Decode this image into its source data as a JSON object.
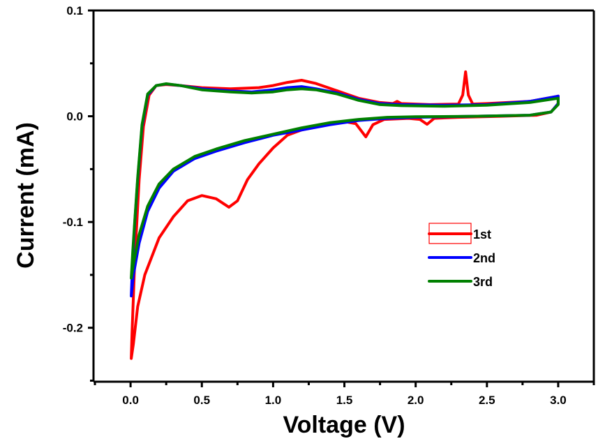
{
  "chart_data": {
    "type": "line",
    "title": "",
    "xlabel": "Voltage (V)",
    "ylabel": "Current (mA)",
    "xlim": [
      -0.26,
      3.25
    ],
    "ylim": [
      -0.251,
      0.1
    ],
    "grid": false,
    "x_ticks": [
      0.0,
      0.5,
      1.0,
      1.5,
      2.0,
      2.5,
      3.0
    ],
    "x_tick_labels": [
      "0.0",
      "0.5",
      "1.0",
      "1.5",
      "2.0",
      "2.5",
      "3.0"
    ],
    "x_minor_ticks": [
      -0.25,
      0.25,
      0.75,
      1.25,
      1.75,
      2.25,
      2.75,
      3.25
    ],
    "y_ticks": [
      0.1,
      0.0,
      -0.1,
      -0.2
    ],
    "y_tick_labels": [
      "0.1",
      "0.0",
      "-0.1",
      "-0.2"
    ],
    "y_minor_ticks": [
      0.05,
      -0.05,
      -0.15,
      -0.25
    ],
    "legend": {
      "placement": "center-right",
      "selected_entry": "1st"
    },
    "series": [
      {
        "name": "1st",
        "color": "#ff0000",
        "points": [
          [
            3.0,
            0.019
          ],
          [
            2.8,
            0.014
          ],
          [
            2.5,
            0.012
          ],
          [
            2.4,
            0.0115
          ],
          [
            2.37,
            0.02
          ],
          [
            2.35,
            0.042
          ],
          [
            2.33,
            0.02
          ],
          [
            2.3,
            0.0115
          ],
          [
            2.1,
            0.011
          ],
          [
            1.9,
            0.012
          ],
          [
            1.87,
            0.014
          ],
          [
            1.84,
            0.012
          ],
          [
            1.75,
            0.013
          ],
          [
            1.6,
            0.017
          ],
          [
            1.45,
            0.024
          ],
          [
            1.3,
            0.031
          ],
          [
            1.2,
            0.034
          ],
          [
            1.1,
            0.032
          ],
          [
            1.0,
            0.029
          ],
          [
            0.9,
            0.027
          ],
          [
            0.7,
            0.026
          ],
          [
            0.5,
            0.027
          ],
          [
            0.35,
            0.029
          ],
          [
            0.25,
            0.03
          ],
          [
            0.18,
            0.029
          ],
          [
            0.13,
            0.02
          ],
          [
            0.09,
            -0.01
          ],
          [
            0.06,
            -0.06
          ],
          [
            0.04,
            -0.11
          ],
          [
            0.03,
            -0.135
          ],
          [
            0.02,
            -0.17
          ],
          [
            0.01,
            -0.205
          ],
          [
            0.005,
            -0.229
          ],
          [
            0.02,
            -0.215
          ],
          [
            0.05,
            -0.18
          ],
          [
            0.1,
            -0.15
          ],
          [
            0.2,
            -0.115
          ],
          [
            0.3,
            -0.095
          ],
          [
            0.4,
            -0.08
          ],
          [
            0.5,
            -0.075
          ],
          [
            0.6,
            -0.078
          ],
          [
            0.69,
            -0.086
          ],
          [
            0.75,
            -0.08
          ],
          [
            0.82,
            -0.06
          ],
          [
            0.9,
            -0.045
          ],
          [
            1.0,
            -0.03
          ],
          [
            1.1,
            -0.018
          ],
          [
            1.2,
            -0.013
          ],
          [
            1.35,
            -0.008
          ],
          [
            1.5,
            -0.005
          ],
          [
            1.58,
            -0.007
          ],
          [
            1.65,
            -0.0195
          ],
          [
            1.7,
            -0.008
          ],
          [
            1.78,
            -0.003
          ],
          [
            1.95,
            -0.002
          ],
          [
            2.03,
            -0.003
          ],
          [
            2.08,
            -0.0076
          ],
          [
            2.13,
            -0.002
          ],
          [
            2.3,
            -0.001
          ],
          [
            2.6,
            0.0
          ],
          [
            2.85,
            0.001
          ],
          [
            2.95,
            0.004
          ],
          [
            3.0,
            0.012
          ],
          [
            3.0,
            0.019
          ]
        ]
      },
      {
        "name": "2nd",
        "color": "#0000ff",
        "points": [
          [
            3.0,
            0.019
          ],
          [
            2.8,
            0.014
          ],
          [
            2.5,
            0.011
          ],
          [
            2.2,
            0.0105
          ],
          [
            1.9,
            0.011
          ],
          [
            1.75,
            0.012
          ],
          [
            1.6,
            0.016
          ],
          [
            1.45,
            0.022
          ],
          [
            1.3,
            0.026
          ],
          [
            1.2,
            0.028
          ],
          [
            1.1,
            0.027
          ],
          [
            1.0,
            0.025
          ],
          [
            0.85,
            0.023
          ],
          [
            0.7,
            0.024
          ],
          [
            0.5,
            0.026
          ],
          [
            0.35,
            0.029
          ],
          [
            0.25,
            0.0305
          ],
          [
            0.18,
            0.029
          ],
          [
            0.12,
            0.02
          ],
          [
            0.08,
            -0.01
          ],
          [
            0.05,
            -0.06
          ],
          [
            0.03,
            -0.1
          ],
          [
            0.015,
            -0.135
          ],
          [
            0.005,
            -0.17
          ],
          [
            0.02,
            -0.15
          ],
          [
            0.06,
            -0.12
          ],
          [
            0.12,
            -0.09
          ],
          [
            0.2,
            -0.068
          ],
          [
            0.3,
            -0.052
          ],
          [
            0.45,
            -0.04
          ],
          [
            0.6,
            -0.033
          ],
          [
            0.8,
            -0.025
          ],
          [
            1.0,
            -0.018
          ],
          [
            1.2,
            -0.013
          ],
          [
            1.4,
            -0.008
          ],
          [
            1.6,
            -0.004
          ],
          [
            1.8,
            -0.002
          ],
          [
            2.0,
            -0.001
          ],
          [
            2.4,
            0.0
          ],
          [
            2.8,
            0.001
          ],
          [
            2.95,
            0.004
          ],
          [
            3.0,
            0.012
          ],
          [
            3.0,
            0.019
          ]
        ]
      },
      {
        "name": "3rd",
        "color": "#008000",
        "points": [
          [
            3.0,
            0.017
          ],
          [
            2.8,
            0.013
          ],
          [
            2.5,
            0.0105
          ],
          [
            2.2,
            0.0095
          ],
          [
            1.9,
            0.01
          ],
          [
            1.75,
            0.011
          ],
          [
            1.6,
            0.015
          ],
          [
            1.45,
            0.021
          ],
          [
            1.3,
            0.025
          ],
          [
            1.2,
            0.026
          ],
          [
            1.1,
            0.025
          ],
          [
            1.0,
            0.023
          ],
          [
            0.85,
            0.022
          ],
          [
            0.7,
            0.023
          ],
          [
            0.5,
            0.025
          ],
          [
            0.35,
            0.029
          ],
          [
            0.25,
            0.0307
          ],
          [
            0.18,
            0.029
          ],
          [
            0.12,
            0.021
          ],
          [
            0.08,
            -0.008
          ],
          [
            0.05,
            -0.058
          ],
          [
            0.03,
            -0.098
          ],
          [
            0.015,
            -0.128
          ],
          [
            0.005,
            -0.153
          ],
          [
            0.02,
            -0.14
          ],
          [
            0.06,
            -0.112
          ],
          [
            0.12,
            -0.085
          ],
          [
            0.2,
            -0.064
          ],
          [
            0.3,
            -0.05
          ],
          [
            0.45,
            -0.038
          ],
          [
            0.6,
            -0.031
          ],
          [
            0.8,
            -0.023
          ],
          [
            1.0,
            -0.017
          ],
          [
            1.2,
            -0.011
          ],
          [
            1.4,
            -0.006
          ],
          [
            1.6,
            -0.003
          ],
          [
            1.8,
            -0.001
          ],
          [
            2.0,
            -0.0005
          ],
          [
            2.4,
            0.0
          ],
          [
            2.8,
            0.001
          ],
          [
            2.95,
            0.004
          ],
          [
            3.0,
            0.011
          ],
          [
            3.0,
            0.017
          ]
        ]
      }
    ]
  }
}
